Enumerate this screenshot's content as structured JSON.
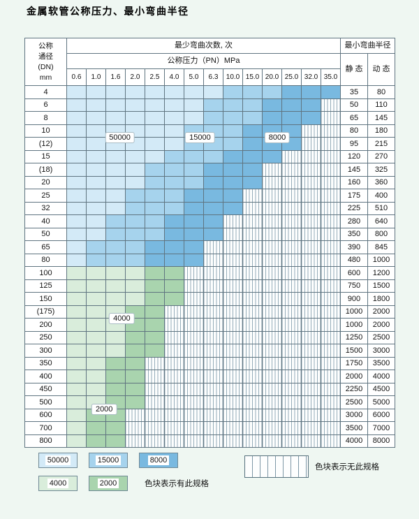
{
  "title": "金属软管公称压力、最小弯曲半径",
  "table": {
    "dn_header_lines": [
      "公称",
      "通径",
      "(DN)",
      "mm"
    ],
    "cycles_header": "最少弯曲次数, 次",
    "pressure_header": "公称压力（PN）MPa",
    "pressure_columns": [
      "0.6",
      "1.0",
      "1.6",
      "2.0",
      "2.5",
      "4.0",
      "5.0",
      "6.3",
      "10.0",
      "15.0",
      "20.0",
      "25.0",
      "32.0",
      "35.0"
    ],
    "radius_header": "最小弯曲半径",
    "static_header": "静 态",
    "dynamic_header": "动 态",
    "rows": [
      {
        "dn": "4",
        "bands": [
          [
            "50000",
            8
          ],
          [
            "15000",
            3
          ],
          [
            "8000",
            3
          ]
        ],
        "static": "35",
        "dynamic": "80"
      },
      {
        "dn": "6",
        "bands": [
          [
            "50000",
            7
          ],
          [
            "15000",
            3
          ],
          [
            "8000",
            3
          ]
        ],
        "static": "50",
        "dynamic": "110"
      },
      {
        "dn": "8",
        "bands": [
          [
            "50000",
            7
          ],
          [
            "15000",
            3
          ],
          [
            "8000",
            3
          ]
        ],
        "static": "65",
        "dynamic": "145"
      },
      {
        "dn": "10",
        "bands": [
          [
            "50000",
            6
          ],
          [
            "15000",
            3
          ],
          [
            "8000",
            3
          ]
        ],
        "static": "80",
        "dynamic": "180"
      },
      {
        "dn": "(12)",
        "bands": [
          [
            "50000",
            6
          ],
          [
            "15000",
            3
          ],
          [
            "8000",
            3
          ]
        ],
        "static": "95",
        "dynamic": "215"
      },
      {
        "dn": "15",
        "bands": [
          [
            "50000",
            5
          ],
          [
            "15000",
            3
          ],
          [
            "8000",
            3
          ]
        ],
        "static": "120",
        "dynamic": "270"
      },
      {
        "dn": "(18)",
        "bands": [
          [
            "50000",
            4
          ],
          [
            "15000",
            3
          ],
          [
            "8000",
            3
          ]
        ],
        "static": "145",
        "dynamic": "325"
      },
      {
        "dn": "20",
        "bands": [
          [
            "50000",
            4
          ],
          [
            "15000",
            3
          ],
          [
            "8000",
            3
          ]
        ],
        "static": "160",
        "dynamic": "360"
      },
      {
        "dn": "25",
        "bands": [
          [
            "50000",
            3
          ],
          [
            "15000",
            3
          ],
          [
            "8000",
            3
          ]
        ],
        "static": "175",
        "dynamic": "400"
      },
      {
        "dn": "32",
        "bands": [
          [
            "50000",
            3
          ],
          [
            "15000",
            3
          ],
          [
            "8000",
            3
          ]
        ],
        "static": "225",
        "dynamic": "510"
      },
      {
        "dn": "40",
        "bands": [
          [
            "50000",
            2
          ],
          [
            "15000",
            3
          ],
          [
            "8000",
            3
          ]
        ],
        "static": "280",
        "dynamic": "640"
      },
      {
        "dn": "50",
        "bands": [
          [
            "50000",
            2
          ],
          [
            "15000",
            3
          ],
          [
            "8000",
            3
          ]
        ],
        "static": "350",
        "dynamic": "800"
      },
      {
        "dn": "65",
        "bands": [
          [
            "50000",
            1
          ],
          [
            "15000",
            3
          ],
          [
            "8000",
            3
          ]
        ],
        "static": "390",
        "dynamic": "845"
      },
      {
        "dn": "80",
        "bands": [
          [
            "50000",
            1
          ],
          [
            "15000",
            3
          ],
          [
            "8000",
            3
          ]
        ],
        "static": "480",
        "dynamic": "1000"
      },
      {
        "dn": "100",
        "bands": [
          [
            "4000",
            4
          ],
          [
            "2000",
            2
          ]
        ],
        "static": "600",
        "dynamic": "1200"
      },
      {
        "dn": "125",
        "bands": [
          [
            "4000",
            4
          ],
          [
            "2000",
            2
          ]
        ],
        "static": "750",
        "dynamic": "1500"
      },
      {
        "dn": "150",
        "bands": [
          [
            "4000",
            4
          ],
          [
            "2000",
            2
          ]
        ],
        "static": "900",
        "dynamic": "1800"
      },
      {
        "dn": "(175)",
        "bands": [
          [
            "4000",
            3
          ],
          [
            "2000",
            2
          ]
        ],
        "static": "1000",
        "dynamic": "2000"
      },
      {
        "dn": "200",
        "bands": [
          [
            "4000",
            3
          ],
          [
            "2000",
            2
          ]
        ],
        "static": "1000",
        "dynamic": "2000"
      },
      {
        "dn": "250",
        "bands": [
          [
            "4000",
            3
          ],
          [
            "2000",
            2
          ]
        ],
        "static": "1250",
        "dynamic": "2500"
      },
      {
        "dn": "300",
        "bands": [
          [
            "4000",
            3
          ],
          [
            "2000",
            2
          ]
        ],
        "static": "1500",
        "dynamic": "3000"
      },
      {
        "dn": "350",
        "bands": [
          [
            "4000",
            2
          ],
          [
            "2000",
            2
          ]
        ],
        "static": "1750",
        "dynamic": "3500"
      },
      {
        "dn": "400",
        "bands": [
          [
            "4000",
            2
          ],
          [
            "2000",
            2
          ]
        ],
        "static": "2000",
        "dynamic": "4000"
      },
      {
        "dn": "450",
        "bands": [
          [
            "4000",
            2
          ],
          [
            "2000",
            2
          ]
        ],
        "static": "2250",
        "dynamic": "4500"
      },
      {
        "dn": "500",
        "bands": [
          [
            "4000",
            2
          ],
          [
            "2000",
            2
          ]
        ],
        "static": "2500",
        "dynamic": "5000"
      },
      {
        "dn": "600",
        "bands": [
          [
            "4000",
            1
          ],
          [
            "2000",
            2
          ]
        ],
        "static": "3000",
        "dynamic": "6000"
      },
      {
        "dn": "700",
        "bands": [
          [
            "4000",
            1
          ],
          [
            "2000",
            2
          ]
        ],
        "static": "3500",
        "dynamic": "7000"
      },
      {
        "dn": "800",
        "bands": [
          [
            "4000",
            1
          ],
          [
            "2000",
            2
          ]
        ],
        "static": "4000",
        "dynamic": "8000"
      }
    ]
  },
  "cycle_colors": {
    "50000": "#d3eaf7",
    "15000": "#a6d3ed",
    "8000": "#79b9e0",
    "4000": "#d9eddb",
    "2000": "#a9d4ae"
  },
  "grid_labels": [
    {
      "text": "50000",
      "row": 3.5,
      "col": 3.2
    },
    {
      "text": "15000",
      "row": 3.5,
      "col": 7.3
    },
    {
      "text": "8000",
      "row": 3.5,
      "col": 11.25
    },
    {
      "text": "4000",
      "row": 17.5,
      "col": 3.3
    },
    {
      "text": "2000",
      "row": 24.5,
      "col": 2.4
    }
  ],
  "legend": {
    "row1": [
      "50000",
      "15000",
      "8000"
    ],
    "row2": [
      "4000",
      "2000"
    ],
    "available_note": "色块表示有此规格",
    "unavailable_note": "色块表示无此规格"
  }
}
